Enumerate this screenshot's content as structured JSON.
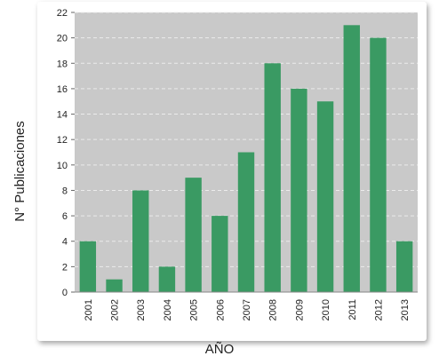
{
  "chart_data": {
    "type": "bar",
    "categories": [
      "2001",
      "2002",
      "2003",
      "2004",
      "2005",
      "2006",
      "2007",
      "2008",
      "2009",
      "2010",
      "2011",
      "2012",
      "2013"
    ],
    "values": [
      4,
      1,
      8,
      2,
      9,
      6,
      11,
      18,
      16,
      15,
      21,
      20,
      4
    ],
    "xlabel": "AÑO",
    "ylabel": "N° Publicaciones",
    "ylim": [
      0,
      22
    ],
    "yticks": [
      0,
      2,
      4,
      6,
      8,
      10,
      12,
      14,
      16,
      18,
      20,
      22
    ],
    "grid": true,
    "colors": {
      "bar": "#3a9a63",
      "plot_bg": "#c9c9c9",
      "grid": "#ececec"
    }
  }
}
